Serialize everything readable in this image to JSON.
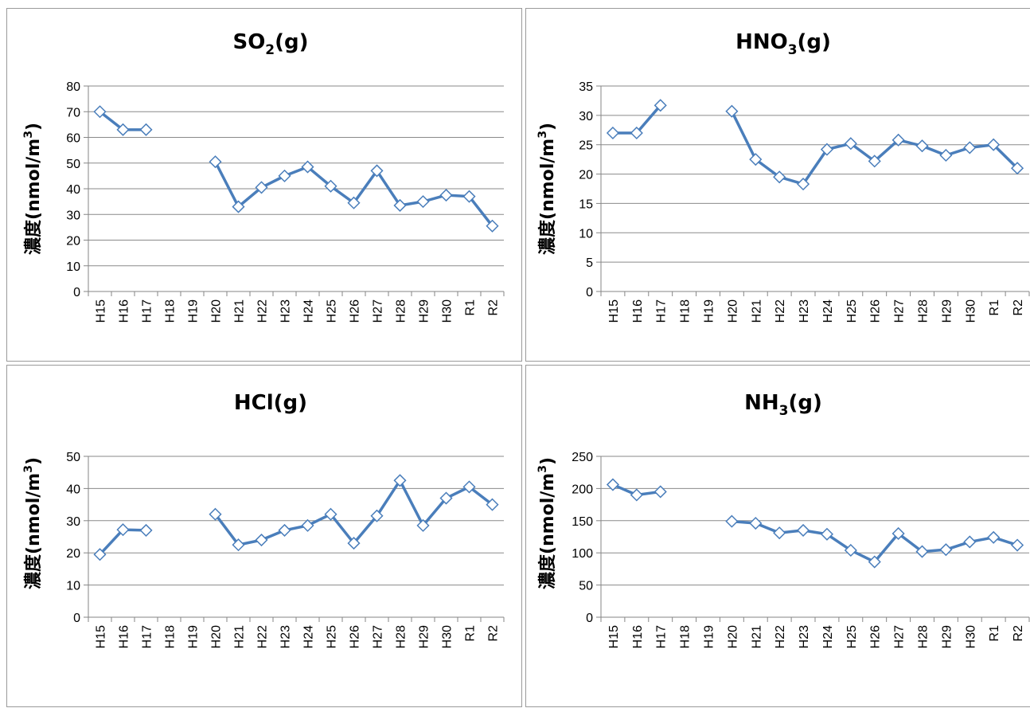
{
  "chart_data": [
    {
      "type": "line",
      "title": "SO",
      "title_sub": "2",
      "title_tail": "(g)",
      "ylabel": "濃度(nmol/m",
      "ylabel_sup": "3",
      "ylabel_tail": ")",
      "categories": [
        "H15",
        "H16",
        "H17",
        "H18",
        "H19",
        "H20",
        "H21",
        "H22",
        "H23",
        "H24",
        "H25",
        "H26",
        "H27",
        "H28",
        "H29",
        "H30",
        "R1",
        "R2"
      ],
      "ylim": [
        0,
        80
      ],
      "yticks": [
        0,
        10,
        20,
        30,
        40,
        50,
        60,
        70,
        80
      ],
      "grid": true,
      "series": [
        {
          "values": [
            70,
            63,
            63,
            null,
            null,
            50.5,
            33,
            40.5,
            45,
            48.5,
            41,
            34.5,
            47,
            33.5,
            35,
            37.5,
            37,
            25.5
          ]
        }
      ],
      "color": "#4a7ebb"
    },
    {
      "type": "line",
      "title": "HNO",
      "title_sub": "3",
      "title_tail": "(g)",
      "ylabel": "濃度(nmol/m",
      "ylabel_sup": "3",
      "ylabel_tail": ")",
      "categories": [
        "H15",
        "H16",
        "H17",
        "H18",
        "H19",
        "H20",
        "H21",
        "H22",
        "H23",
        "H24",
        "H25",
        "H26",
        "H27",
        "H28",
        "H29",
        "H30",
        "R1",
        "R2"
      ],
      "ylim": [
        0,
        35
      ],
      "yticks": [
        0,
        5,
        10,
        15,
        20,
        25,
        30,
        35
      ],
      "grid": true,
      "series": [
        {
          "values": [
            27,
            27,
            31.7,
            null,
            null,
            30.7,
            22.5,
            19.5,
            18.3,
            24.2,
            25.2,
            22.2,
            25.8,
            24.8,
            23.2,
            24.5,
            25,
            21
          ]
        }
      ],
      "color": "#4a7ebb"
    },
    {
      "type": "line",
      "title": "HCl(g)",
      "title_sub": "",
      "title_tail": "",
      "ylabel": "濃度(nmol/m",
      "ylabel_sup": "3",
      "ylabel_tail": ")",
      "categories": [
        "H15",
        "H16",
        "H17",
        "H18",
        "H19",
        "H20",
        "H21",
        "H22",
        "H23",
        "H24",
        "H25",
        "H26",
        "H27",
        "H28",
        "H29",
        "H30",
        "R1",
        "R2"
      ],
      "ylim": [
        0,
        50
      ],
      "yticks": [
        0,
        10,
        20,
        30,
        40,
        50
      ],
      "grid": true,
      "series": [
        {
          "values": [
            19.5,
            27.2,
            27,
            null,
            null,
            32,
            22.5,
            24,
            27,
            28.5,
            32,
            23,
            31.5,
            42.5,
            28.5,
            37,
            40.5,
            35
          ]
        }
      ],
      "color": "#4a7ebb"
    },
    {
      "type": "line",
      "title": "NH",
      "title_sub": "3",
      "title_tail": "(g)",
      "ylabel": "濃度(nmol/m",
      "ylabel_sup": "3",
      "ylabel_tail": ")",
      "categories": [
        "H15",
        "H16",
        "H17",
        "H18",
        "H19",
        "H20",
        "H21",
        "H22",
        "H23",
        "H24",
        "H25",
        "H26",
        "H27",
        "H28",
        "H29",
        "H30",
        "R1",
        "R2"
      ],
      "ylim": [
        0,
        250
      ],
      "yticks": [
        0,
        50,
        100,
        150,
        200,
        250
      ],
      "grid": true,
      "series": [
        {
          "values": [
            206,
            190,
            195,
            null,
            null,
            149,
            146,
            131,
            135,
            129,
            104,
            86,
            130,
            102,
            105,
            117,
            124,
            112
          ]
        }
      ],
      "color": "#4a7ebb"
    }
  ]
}
